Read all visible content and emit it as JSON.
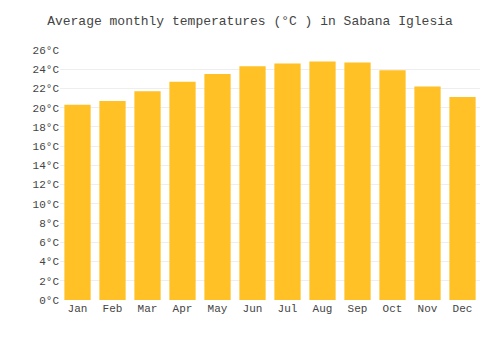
{
  "chart_data": {
    "type": "bar",
    "title": "Average monthly temperatures (°C ) in Sabana Iglesia",
    "categories": [
      "Jan",
      "Feb",
      "Mar",
      "Apr",
      "May",
      "Jun",
      "Jul",
      "Aug",
      "Sep",
      "Oct",
      "Nov",
      "Dec"
    ],
    "values": [
      20.3,
      20.7,
      21.7,
      22.7,
      23.5,
      24.3,
      24.6,
      24.8,
      24.7,
      23.9,
      22.2,
      21.1
    ],
    "color": "#FFC125",
    "ylim": [
      0,
      26
    ],
    "yticks": [
      {
        "value": 0,
        "label": "0°C"
      },
      {
        "value": 2,
        "label": "2°C"
      },
      {
        "value": 4,
        "label": "4°C"
      },
      {
        "value": 6,
        "label": "6°C"
      },
      {
        "value": 8,
        "label": "8°C"
      },
      {
        "value": 10,
        "label": "10°C"
      },
      {
        "value": 12,
        "label": "12°C"
      },
      {
        "value": 14,
        "label": "14°C"
      },
      {
        "value": 16,
        "label": "16°C"
      },
      {
        "value": 18,
        "label": "18°C"
      },
      {
        "value": 20,
        "label": "20°C"
      },
      {
        "value": 22,
        "label": "22°C"
      },
      {
        "value": 24,
        "label": "24°C"
      },
      {
        "value": 26,
        "label": "26°C"
      }
    ],
    "grid": true
  }
}
